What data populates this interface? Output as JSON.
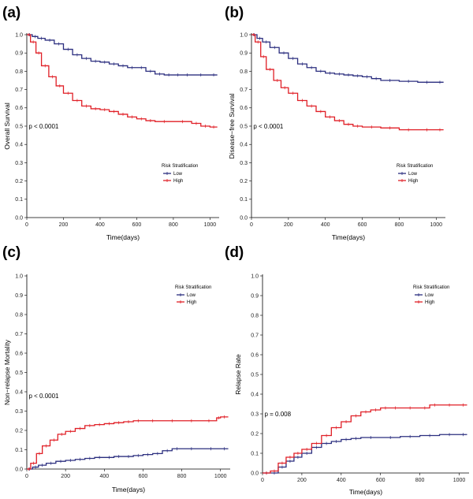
{
  "chart_data": [
    {
      "type": "line",
      "panel_label": "(a)",
      "ylabel": "Overall Survival",
      "xlabel": "Time(days)",
      "xlim": [
        0,
        1050
      ],
      "ylim": [
        0,
        1
      ],
      "xticks": [
        "0",
        "200",
        "400",
        "600",
        "800",
        "1000"
      ],
      "xtick_values": [
        0,
        200,
        400,
        600,
        800,
        1000
      ],
      "yticks": [
        "0.0",
        "0.1",
        "0.2",
        "0.3",
        "0.4",
        "0.5",
        "0.6",
        "0.7",
        "0.8",
        "0.9",
        "1.0"
      ],
      "ytick_values": [
        0,
        0.1,
        0.2,
        0.3,
        0.4,
        0.5,
        0.6,
        0.7,
        0.8,
        0.9,
        1.0
      ],
      "pvalue": "p < 0.0001",
      "pvalue_pos": [
        10,
        0.5
      ],
      "legend": {
        "title": "Risk Stratification",
        "entries": [
          "Low",
          "High"
        ]
      },
      "series": [
        {
          "name": "Low",
          "color": "#2b2e7f",
          "x": [
            0,
            30,
            60,
            100,
            150,
            200,
            250,
            300,
            350,
            400,
            450,
            500,
            550,
            600,
            650,
            700,
            750,
            800,
            850,
            900,
            1000,
            1040
          ],
          "y": [
            1.0,
            0.99,
            0.98,
            0.97,
            0.95,
            0.92,
            0.89,
            0.87,
            0.855,
            0.85,
            0.84,
            0.83,
            0.82,
            0.82,
            0.8,
            0.785,
            0.78,
            0.78,
            0.78,
            0.78,
            0.78,
            0.78
          ]
        },
        {
          "name": "High",
          "color": "#e01f26",
          "x": [
            0,
            20,
            50,
            80,
            120,
            160,
            200,
            250,
            300,
            350,
            400,
            450,
            500,
            550,
            600,
            650,
            700,
            800,
            900,
            950,
            1000,
            1040
          ],
          "y": [
            1.0,
            0.96,
            0.9,
            0.83,
            0.77,
            0.72,
            0.68,
            0.64,
            0.61,
            0.595,
            0.59,
            0.58,
            0.565,
            0.55,
            0.54,
            0.53,
            0.525,
            0.525,
            0.515,
            0.5,
            0.495,
            0.495
          ]
        }
      ]
    },
    {
      "type": "line",
      "panel_label": "(b)",
      "ylabel": "Disease−free Survival",
      "xlabel": "Time(days)",
      "xlim": [
        0,
        1050
      ],
      "ylim": [
        0,
        1
      ],
      "xticks": [
        "0",
        "200",
        "400",
        "600",
        "800",
        "1000"
      ],
      "xtick_values": [
        0,
        200,
        400,
        600,
        800,
        1000
      ],
      "yticks": [
        "0.0",
        "0.1",
        "0.2",
        "0.3",
        "0.4",
        "0.5",
        "0.6",
        "0.7",
        "0.8",
        "0.9",
        "1.0"
      ],
      "ytick_values": [
        0,
        0.1,
        0.2,
        0.3,
        0.4,
        0.5,
        0.6,
        0.7,
        0.8,
        0.9,
        1.0
      ],
      "pvalue": "p < 0.0001",
      "pvalue_pos": [
        10,
        0.5
      ],
      "legend": {
        "title": "Risk Stratification",
        "entries": [
          "Low",
          "High"
        ]
      },
      "series": [
        {
          "name": "Low",
          "color": "#2b2e7f",
          "x": [
            0,
            30,
            60,
            100,
            150,
            200,
            250,
            300,
            350,
            400,
            450,
            500,
            550,
            600,
            650,
            700,
            800,
            900,
            1000,
            1040
          ],
          "y": [
            1.0,
            0.98,
            0.96,
            0.93,
            0.9,
            0.87,
            0.84,
            0.82,
            0.8,
            0.79,
            0.785,
            0.78,
            0.775,
            0.77,
            0.76,
            0.75,
            0.745,
            0.74,
            0.74,
            0.74
          ]
        },
        {
          "name": "High",
          "color": "#e01f26",
          "x": [
            0,
            20,
            50,
            80,
            120,
            160,
            200,
            250,
            300,
            350,
            400,
            450,
            500,
            550,
            600,
            700,
            800,
            900,
            1000,
            1040
          ],
          "y": [
            1.0,
            0.96,
            0.88,
            0.81,
            0.75,
            0.71,
            0.68,
            0.64,
            0.61,
            0.58,
            0.55,
            0.53,
            0.51,
            0.5,
            0.495,
            0.49,
            0.48,
            0.48,
            0.48,
            0.48
          ]
        }
      ]
    },
    {
      "type": "line",
      "panel_label": "(c)",
      "ylabel": "Non−relapse Mortality",
      "xlabel": "Time(days)",
      "xlim": [
        0,
        1050
      ],
      "ylim": [
        0,
        1
      ],
      "xticks": [
        "0",
        "200",
        "400",
        "600",
        "800",
        "1000"
      ],
      "xtick_values": [
        0,
        200,
        400,
        600,
        800,
        1000
      ],
      "yticks": [
        "0.0",
        "0.1",
        "0.2",
        "0.3",
        "0.4",
        "0.5",
        "0.6",
        "0.7",
        "0.8",
        "0.9",
        "1.0"
      ],
      "ytick_values": [
        0,
        0.1,
        0.2,
        0.3,
        0.4,
        0.5,
        0.6,
        0.7,
        0.8,
        0.9,
        1.0
      ],
      "pvalue": "p < 0.0001",
      "pvalue_pos": [
        10,
        0.38
      ],
      "legend": {
        "title": "Risk Stratification",
        "entries": [
          "Low",
          "High"
        ]
      },
      "series": [
        {
          "name": "Low",
          "color": "#2b2e7f",
          "x": [
            0,
            30,
            60,
            100,
            150,
            200,
            250,
            300,
            350,
            400,
            450,
            500,
            550,
            600,
            650,
            700,
            750,
            800,
            900,
            1000,
            1040
          ],
          "y": [
            0.0,
            0.01,
            0.02,
            0.03,
            0.04,
            0.045,
            0.05,
            0.055,
            0.06,
            0.06,
            0.065,
            0.065,
            0.07,
            0.075,
            0.08,
            0.095,
            0.105,
            0.105,
            0.105,
            0.105,
            0.105
          ]
        },
        {
          "name": "High",
          "color": "#e01f26",
          "x": [
            0,
            20,
            50,
            80,
            120,
            160,
            200,
            250,
            300,
            350,
            400,
            450,
            500,
            550,
            600,
            700,
            800,
            900,
            980,
            1000,
            1040
          ],
          "y": [
            0.0,
            0.03,
            0.08,
            0.12,
            0.15,
            0.18,
            0.195,
            0.21,
            0.225,
            0.23,
            0.235,
            0.24,
            0.245,
            0.25,
            0.25,
            0.25,
            0.25,
            0.25,
            0.265,
            0.27,
            0.27
          ]
        }
      ]
    },
    {
      "type": "line",
      "panel_label": "(d)",
      "ylabel": "Relapse Rate",
      "xlabel": "Time(days)",
      "xlim": [
        0,
        1050
      ],
      "ylim": [
        0,
        1
      ],
      "xticks": [
        "0",
        "200",
        "400",
        "600",
        "800",
        "1000"
      ],
      "xtick_values": [
        0,
        200,
        400,
        600,
        800,
        1000
      ],
      "yticks": [
        "0.0",
        "0.1",
        "0.2",
        "0.3",
        "0.4",
        "0.5",
        "0.6",
        "0.7",
        "0.8",
        "0.9",
        "1.0"
      ],
      "ytick_values": [
        0,
        0.1,
        0.2,
        0.3,
        0.4,
        0.5,
        0.6,
        0.7,
        0.8,
        0.9,
        1.0
      ],
      "pvalue": "p = 0.008",
      "pvalue_pos": [
        10,
        0.3
      ],
      "legend": {
        "title": "Risk Stratification",
        "entries": [
          "Low",
          "High"
        ]
      },
      "series": [
        {
          "name": "Low",
          "color": "#2b2e7f",
          "x": [
            0,
            40,
            80,
            120,
            160,
            200,
            250,
            300,
            350,
            400,
            450,
            500,
            600,
            700,
            800,
            900,
            1000,
            1040
          ],
          "y": [
            0.0,
            0.0,
            0.03,
            0.06,
            0.08,
            0.1,
            0.13,
            0.15,
            0.16,
            0.17,
            0.175,
            0.18,
            0.18,
            0.185,
            0.19,
            0.195,
            0.195,
            0.195
          ]
        },
        {
          "name": "High",
          "color": "#e01f26",
          "x": [
            0,
            40,
            80,
            120,
            160,
            200,
            250,
            300,
            350,
            400,
            450,
            500,
            550,
            600,
            650,
            700,
            800,
            850,
            900,
            1000,
            1040
          ],
          "y": [
            0.0,
            0.01,
            0.05,
            0.08,
            0.1,
            0.12,
            0.15,
            0.19,
            0.23,
            0.26,
            0.29,
            0.31,
            0.32,
            0.33,
            0.33,
            0.33,
            0.33,
            0.345,
            0.345,
            0.345,
            0.345
          ]
        }
      ]
    }
  ]
}
